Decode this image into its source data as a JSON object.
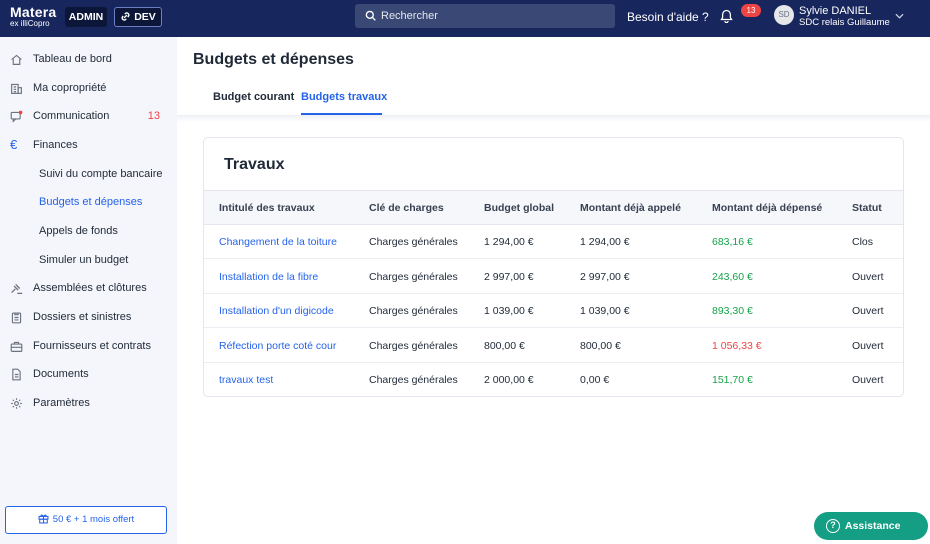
{
  "header": {
    "logo_line1": "Matera",
    "logo_line2": "ex illiCopro",
    "admin_label": "ADMIN",
    "dev_label": "DEV",
    "search_placeholder": "Rechercher",
    "help_label": "Besoin d'aide ?",
    "notification_count": "13",
    "avatar_initials": "SD",
    "user_name": "Sylvie DANIEL",
    "user_role": "SDC relais Guillaume"
  },
  "sidebar": {
    "items": [
      {
        "label": "Tableau de bord",
        "icon": "home-icon"
      },
      {
        "label": "Ma copropriété",
        "icon": "building-icon"
      },
      {
        "label": "Communication",
        "icon": "message-icon",
        "count": "13"
      },
      {
        "label": "Finances",
        "icon": "euro-icon"
      },
      {
        "label": "Suivi du compte bancaire"
      },
      {
        "label": "Budgets et dépenses"
      },
      {
        "label": "Appels de fonds"
      },
      {
        "label": "Simuler un budget"
      },
      {
        "label": "Assemblées et clôtures",
        "icon": "gavel-icon"
      },
      {
        "label": "Dossiers et sinistres",
        "icon": "clipboard-icon"
      },
      {
        "label": "Fournisseurs et contrats",
        "icon": "briefcase-icon"
      },
      {
        "label": "Documents",
        "icon": "document-icon"
      },
      {
        "label": "Paramètres",
        "icon": "gear-icon"
      }
    ],
    "offer_label": "50 € + 1 mois offert"
  },
  "main": {
    "title": "Budgets et dépenses",
    "tabs": [
      {
        "label": "Budget courant"
      },
      {
        "label": "Budgets travaux",
        "active": true
      }
    ],
    "card_title": "Travaux",
    "columns": [
      "Intitulé des travaux",
      "Clé de charges",
      "Budget global",
      "Montant déjà appelé",
      "Montant déjà dépensé",
      "Statut"
    ],
    "rows": [
      {
        "name": "Changement de la toiture",
        "key": "Charges générales",
        "budget": "1 294,00 €",
        "called": "1 294,00 €",
        "spent": "683,16 €",
        "status": "Clos"
      },
      {
        "name": "Installation de la fibre",
        "key": "Charges générales",
        "budget": "2 997,00 €",
        "called": "2 997,00 €",
        "spent": "243,60 €",
        "status": "Ouvert"
      },
      {
        "name": "Installation d'un digicode",
        "key": "Charges générales",
        "budget": "1 039,00 €",
        "called": "1 039,00 €",
        "spent": "893,30 €",
        "status": "Ouvert"
      },
      {
        "name": "Réfection porte coté cour",
        "key": "Charges générales",
        "budget": "800,00 €",
        "called": "800,00 €",
        "spent": "1 056,33 €",
        "status": "Ouvert"
      },
      {
        "name": "travaux test",
        "key": "Charges générales",
        "budget": "2 000,00 €",
        "called": "0,00 €",
        "spent": "151,70 €",
        "status": "Ouvert"
      }
    ]
  },
  "assist_label": "Assistance",
  "colors": {
    "topbar": "#17265c",
    "accent": "#2563eb",
    "positive": "#16a34a",
    "negative": "#ef4444",
    "assist": "#149e84"
  }
}
